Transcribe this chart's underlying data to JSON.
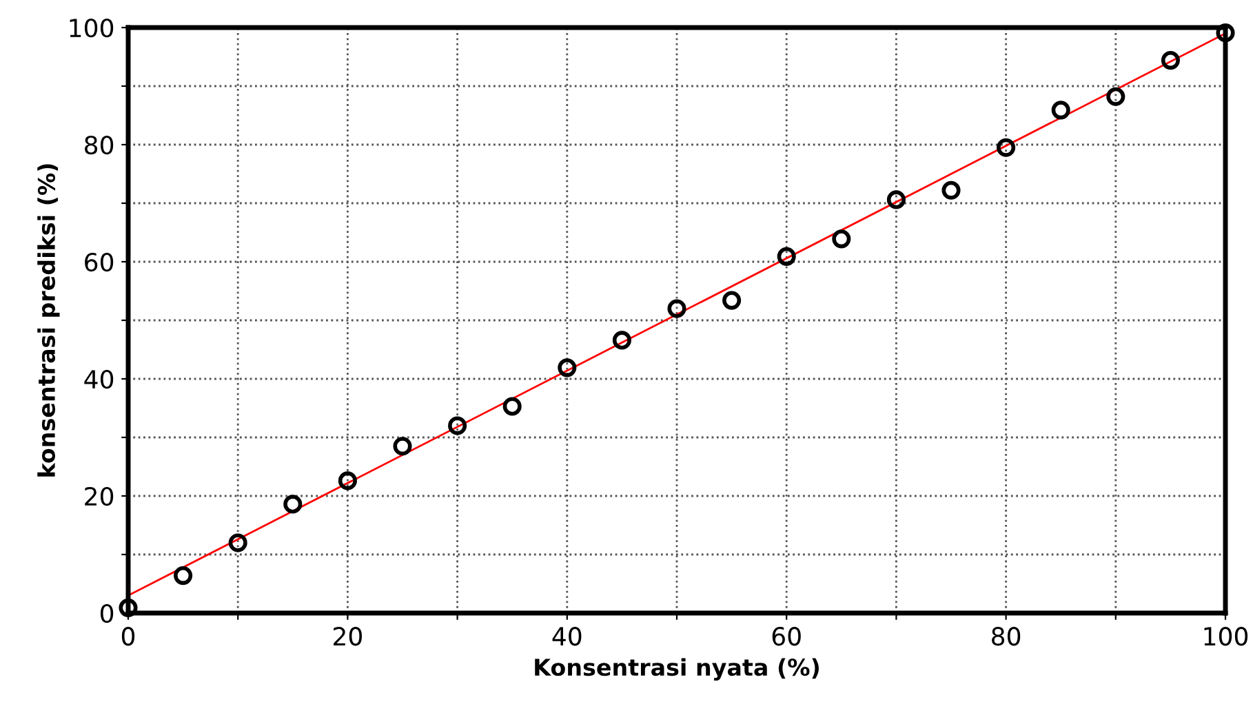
{
  "chart_data": {
    "type": "scatter",
    "xlabel": "Konsentrasi nyata (%)",
    "ylabel": "konsentrasi prediksi (%)",
    "series": [
      {
        "color": "#000000",
        "marker": "circle",
        "x": [
          0,
          5,
          10,
          15,
          20,
          25,
          30,
          35,
          40,
          45,
          50,
          55,
          60,
          65,
          70,
          75,
          80,
          85,
          90,
          95,
          100
        ],
        "values": [
          0.9,
          6.4,
          12.0,
          18.6,
          22.6,
          28.5,
          32.0,
          35.3,
          41.9,
          46.6,
          52.0,
          53.4,
          60.9,
          63.9,
          70.6,
          72.2,
          79.5,
          85.9,
          88.2,
          94.4,
          99.1
        ]
      },
      {
        "type": "line",
        "color": "#ff0000",
        "x": [
          0,
          100
        ],
        "values": [
          3,
          99
        ]
      }
    ],
    "xlim": [
      0,
      100
    ],
    "ylim": [
      0,
      100
    ],
    "xticks": [
      0,
      {
        "value": 10,
        "label": null
      },
      20,
      {
        "value": 30,
        "label": null
      },
      40,
      {
        "value": 50,
        "label": null
      },
      60,
      {
        "value": 70,
        "label": null
      },
      80,
      {
        "value": 90,
        "label": null
      },
      100
    ],
    "yticks": [
      0,
      {
        "value": 10,
        "label": null
      },
      20,
      {
        "value": 30,
        "label": null
      },
      40,
      {
        "value": 50,
        "label": null
      },
      60,
      {
        "value": 70,
        "label": null
      },
      80,
      {
        "value": 90,
        "label": null
      },
      100
    ],
    "grid": true,
    "legend": false
  }
}
